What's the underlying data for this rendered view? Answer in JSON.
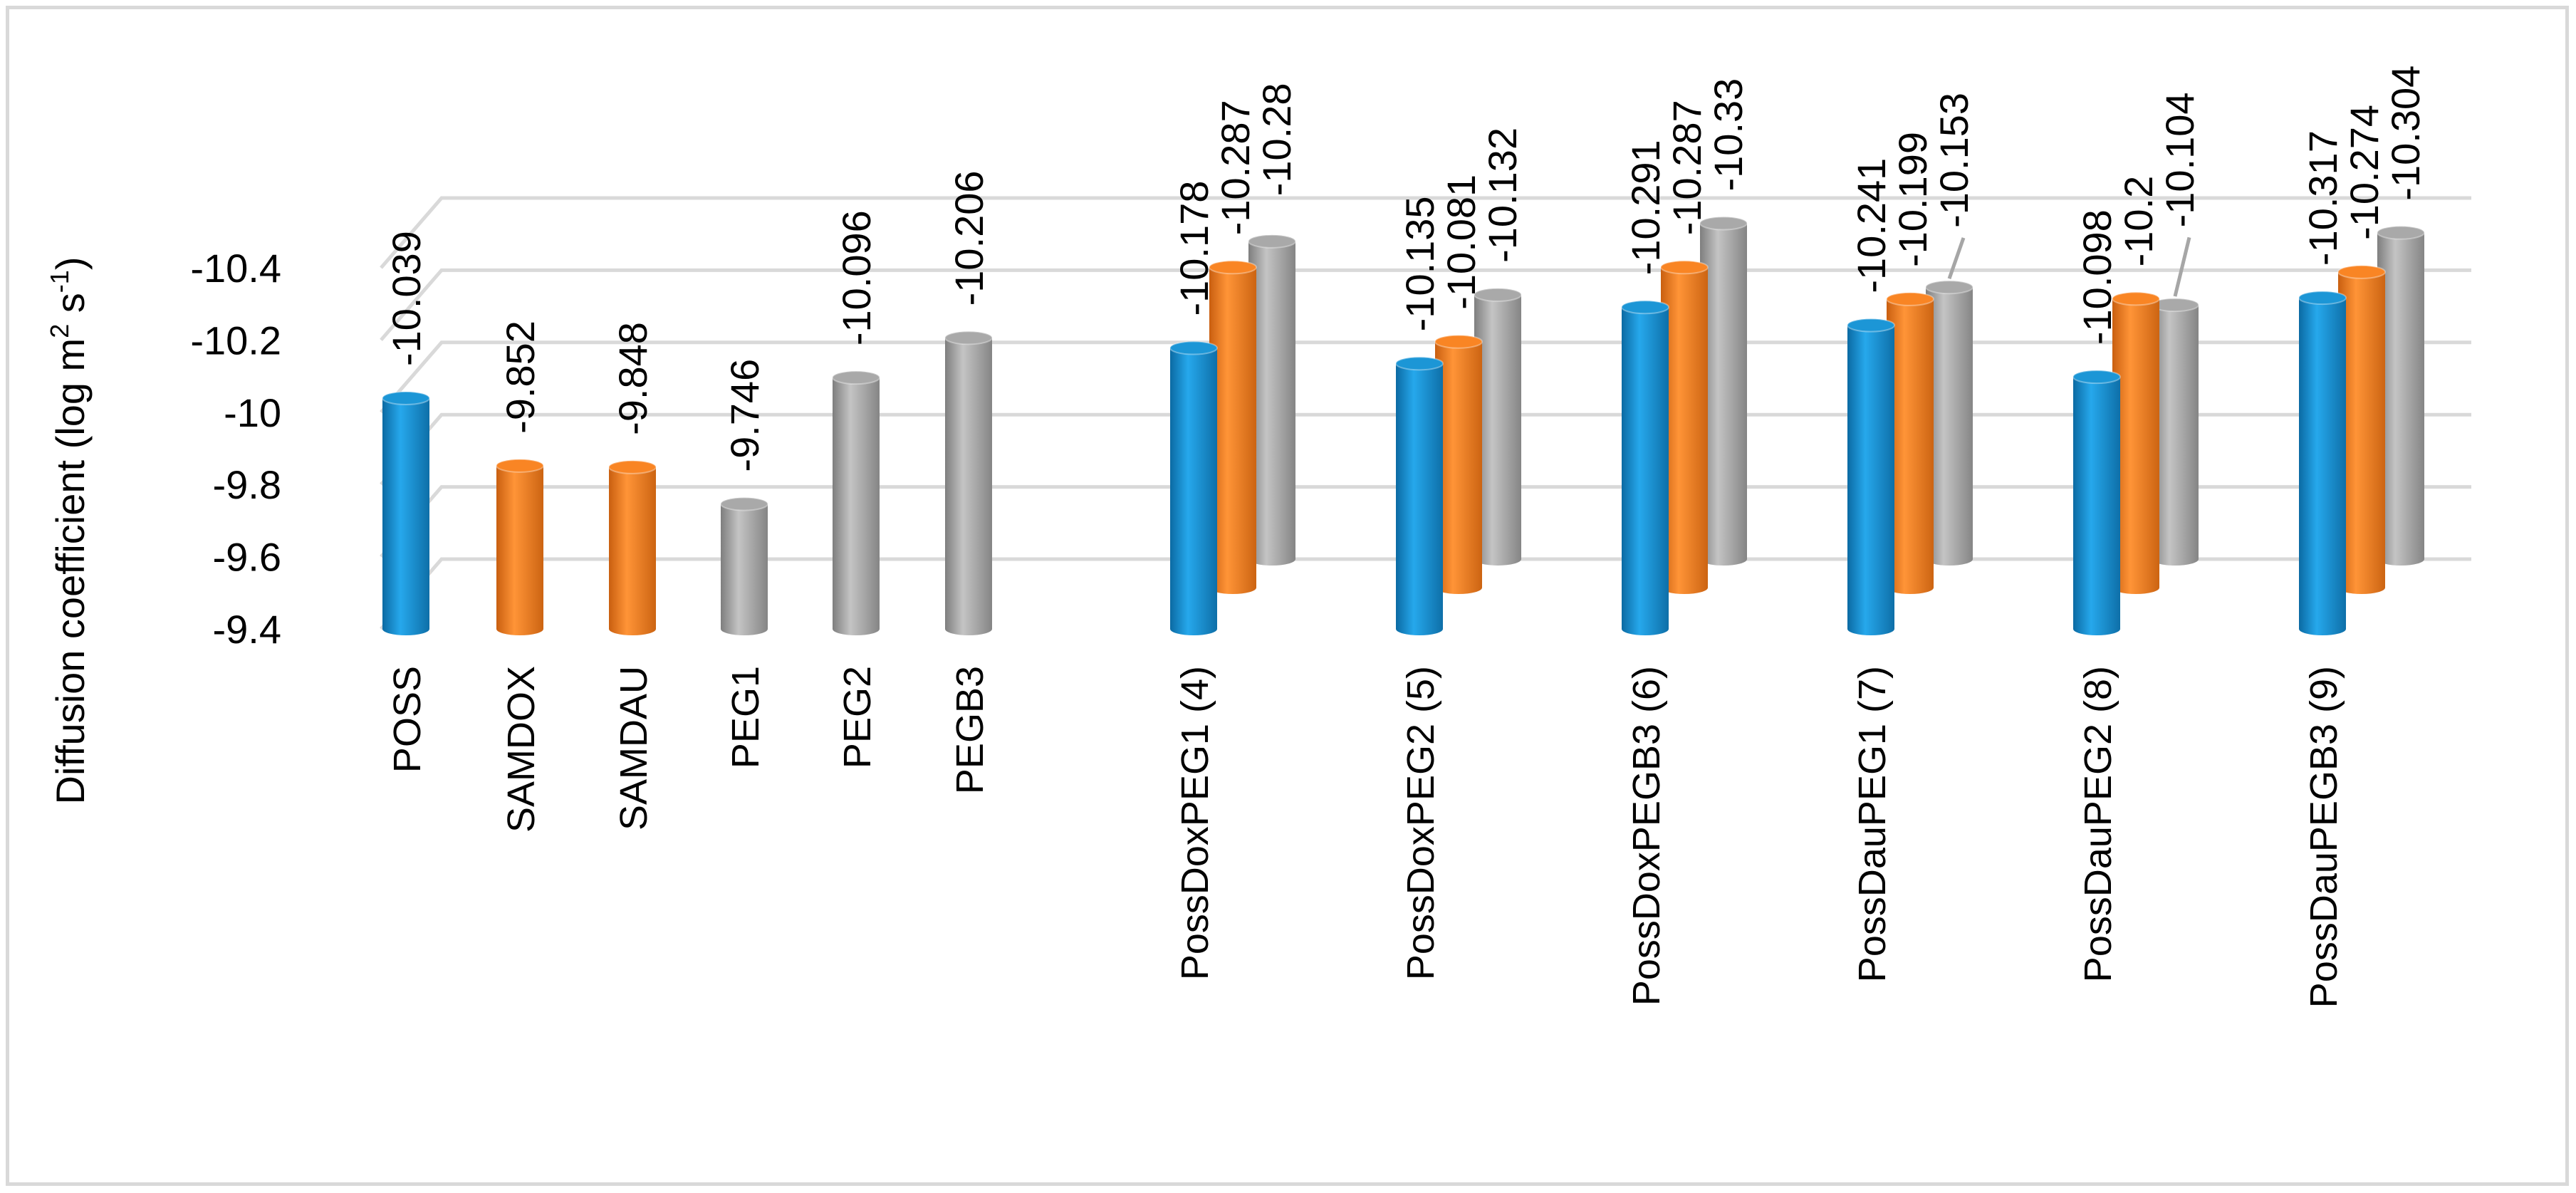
{
  "chart_data": {
    "type": "bar",
    "title": "",
    "xlabel": "",
    "ylabel_main": "Diffusion coefficient (log m",
    "ylabel_sup1": "2",
    "ylabel_mid": " s",
    "ylabel_sup2": "-1",
    "ylabel_end": ")",
    "ylim": [
      -9.4,
      -10.4
    ],
    "yticks": [
      {
        "value": -9.4,
        "label": "-9.4"
      },
      {
        "value": -9.6,
        "label": "-9.6"
      },
      {
        "value": -9.8,
        "label": "-9.8"
      },
      {
        "value": -10.0,
        "label": "-10"
      },
      {
        "value": -10.2,
        "label": "-10.2"
      },
      {
        "value": -10.4,
        "label": "-10.4"
      }
    ],
    "colors": {
      "blue": "#1c96d6",
      "orange": "#f98524",
      "gray": "#a9a9a9",
      "grid": "#d9d9d9"
    },
    "single_groups": [
      {
        "label": "POSS",
        "value": -10.039,
        "value_label": "-10.039",
        "color": "blue"
      },
      {
        "label": "SAMDOX",
        "value": -9.852,
        "value_label": "-9.852",
        "color": "orange"
      },
      {
        "label": "SAMDAU",
        "value": -9.848,
        "value_label": "-9.848",
        "color": "orange"
      },
      {
        "label": "PEG1",
        "value": -9.746,
        "value_label": "-9.746",
        "color": "gray"
      },
      {
        "label": "PEG2",
        "value": -10.096,
        "value_label": "-10.096",
        "color": "gray"
      },
      {
        "label": "PEGB3",
        "value": -10.206,
        "value_label": "-10.206",
        "color": "gray"
      }
    ],
    "triple_groups": [
      {
        "label": "PossDoxPEG1 (4)",
        "values": [
          -10.178,
          -10.287,
          -10.28
        ],
        "value_labels": [
          "-10.178",
          "-10.287",
          "-10.28"
        ]
      },
      {
        "label": "PossDoxPEG2 (5)",
        "values": [
          -10.135,
          -10.081,
          -10.132
        ],
        "value_labels": [
          "-10.135",
          "-10.081",
          "-10.132"
        ]
      },
      {
        "label": "PossDoxPEGB3 (6)",
        "values": [
          -10.291,
          -10.287,
          -10.33
        ],
        "value_labels": [
          "-10.291",
          "-10.287",
          "-10.33"
        ]
      },
      {
        "label": "PossDauPEG1 (7)",
        "values": [
          -10.241,
          -10.199,
          -10.153
        ],
        "value_labels": [
          "-10.241",
          "-10.199",
          "-10.153"
        ]
      },
      {
        "label": "PossDauPEG2 (8)",
        "values": [
          -10.098,
          -10.2,
          -10.104
        ],
        "value_labels": [
          "-10.098",
          "-10.2",
          "-10.104"
        ]
      },
      {
        "label": "PossDauPEGB3 (9)",
        "values": [
          -10.317,
          -10.274,
          -10.304
        ],
        "value_labels": [
          "-10.317",
          "-10.274",
          "-10.304"
        ]
      }
    ]
  }
}
